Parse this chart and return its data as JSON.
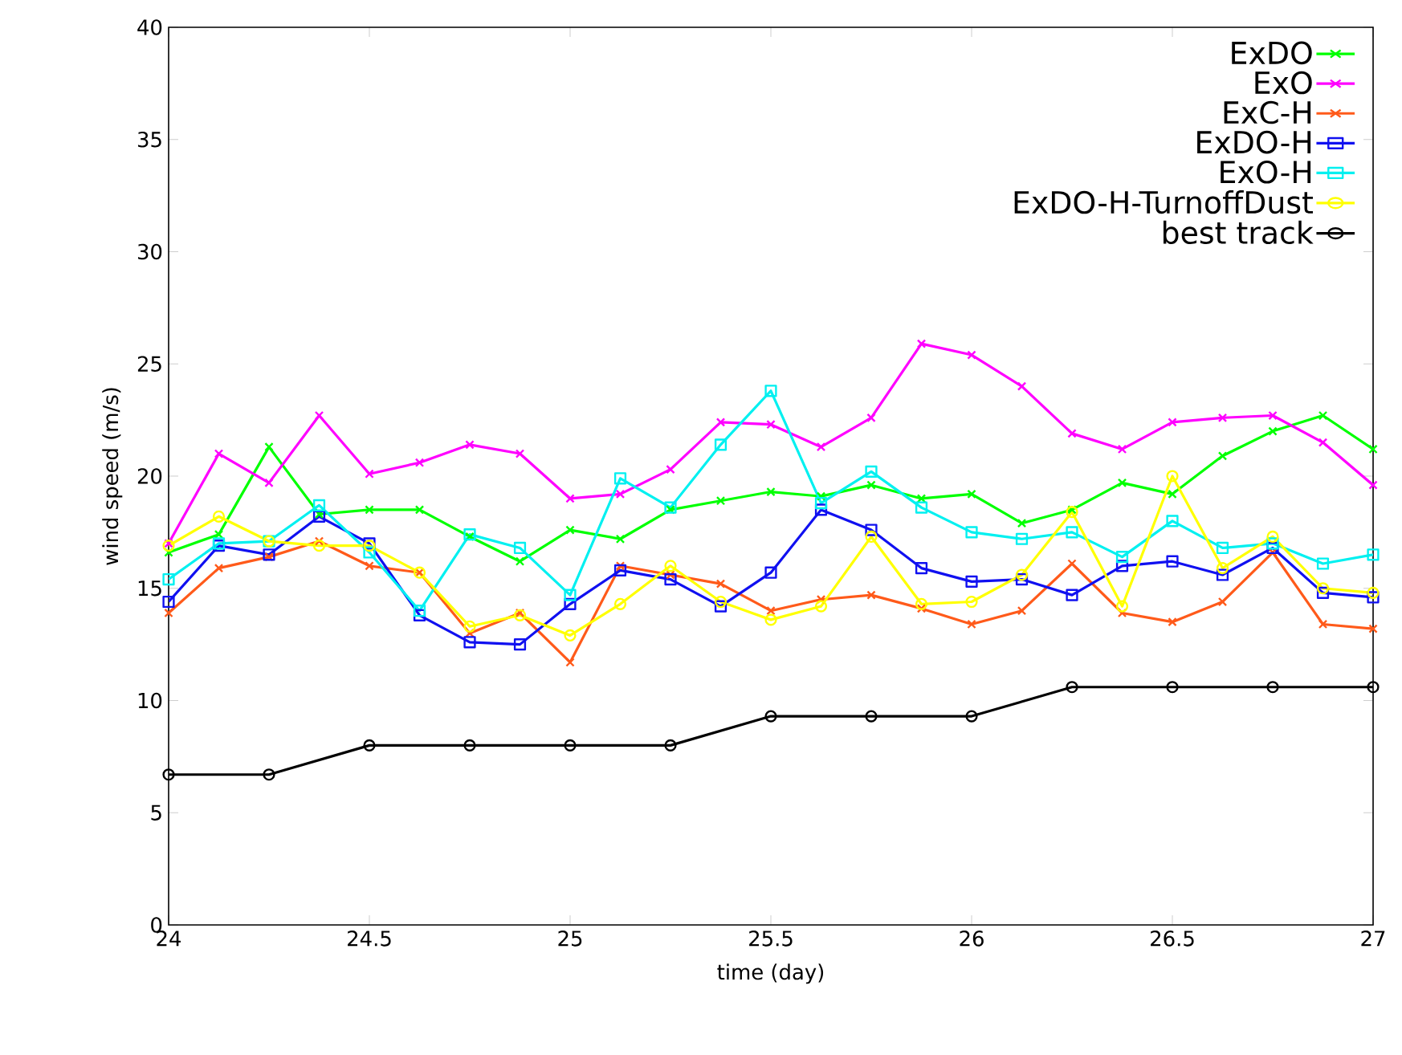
{
  "chart_data": {
    "type": "line",
    "xlabel": "time (day)",
    "ylabel": "wind speed (m/s)",
    "x": [
      24,
      24.125,
      24.25,
      24.375,
      24.5,
      24.625,
      24.75,
      24.875,
      25,
      25.125,
      25.25,
      25.375,
      25.5,
      25.625,
      25.75,
      25.875,
      26,
      26.125,
      26.25,
      26.375,
      26.5,
      26.625,
      26.75,
      26.875,
      27
    ],
    "xlim": [
      24,
      27
    ],
    "xticks": [
      24,
      24.5,
      25,
      25.5,
      26,
      26.5,
      27
    ],
    "ylim": [
      0,
      40
    ],
    "yticks": [
      0,
      5,
      10,
      15,
      20,
      25,
      30,
      35,
      40
    ],
    "grid": false,
    "legend": "top right",
    "line_style": "solid",
    "series": [
      {
        "name": "ExDO",
        "color": "#00ff00",
        "marker": "cross",
        "values": [
          16.6,
          17.4,
          21.3,
          18.3,
          18.5,
          18.5,
          17.3,
          16.2,
          17.6,
          17.2,
          18.5,
          18.9,
          19.3,
          19.1,
          19.6,
          19.0,
          19.2,
          17.9,
          18.5,
          19.7,
          19.2,
          20.9,
          22.0,
          22.7,
          21.2
        ]
      },
      {
        "name": "ExO",
        "color": "#ff00ff",
        "marker": "cross",
        "values": [
          17.0,
          21.0,
          19.7,
          22.7,
          20.1,
          20.6,
          21.4,
          21.0,
          19.0,
          19.2,
          20.3,
          22.4,
          22.3,
          21.3,
          22.6,
          25.9,
          25.4,
          24.0,
          21.9,
          21.2,
          22.4,
          22.6,
          22.7,
          21.5,
          19.6
        ]
      },
      {
        "name": "ExC-H",
        "color": "#ff5a1a",
        "marker": "cross",
        "values": [
          13.9,
          15.9,
          16.4,
          17.1,
          16.0,
          15.7,
          13.0,
          13.9,
          11.7,
          16.0,
          15.6,
          15.2,
          14.0,
          14.5,
          14.7,
          14.1,
          13.4,
          14.0,
          16.1,
          13.9,
          13.5,
          14.4,
          16.6,
          13.4,
          13.2
        ]
      },
      {
        "name": "ExDO-H",
        "color": "#1010f0",
        "marker": "square",
        "values": [
          14.4,
          16.9,
          16.5,
          18.2,
          17.0,
          13.8,
          12.6,
          12.5,
          14.3,
          15.8,
          15.4,
          14.2,
          15.7,
          18.5,
          17.6,
          15.9,
          15.3,
          15.4,
          14.7,
          16.0,
          16.2,
          15.6,
          16.8,
          14.8,
          14.6
        ]
      },
      {
        "name": "ExO-H",
        "color": "#00f0f0",
        "marker": "square",
        "values": [
          15.4,
          17.0,
          17.1,
          18.7,
          16.6,
          14.0,
          17.4,
          16.8,
          14.7,
          19.9,
          18.6,
          21.4,
          23.8,
          18.8,
          20.2,
          18.6,
          17.5,
          17.2,
          17.5,
          16.4,
          18.0,
          16.8,
          17.0,
          16.1,
          16.5
        ]
      },
      {
        "name": "ExDO-H-TurnoffDust",
        "color": "#ffff00",
        "marker": "circle",
        "values": [
          16.9,
          18.2,
          17.1,
          16.9,
          16.9,
          15.7,
          13.3,
          13.8,
          12.9,
          14.3,
          16.0,
          14.4,
          13.6,
          14.2,
          17.3,
          14.3,
          14.4,
          15.6,
          18.4,
          14.2,
          20.0,
          15.9,
          17.3,
          15.0,
          14.8
        ]
      },
      {
        "name": "best track",
        "color": "#000000",
        "marker": "circle",
        "x": [
          24,
          24.25,
          24.5,
          24.75,
          25,
          25.25,
          25.5,
          25.75,
          26,
          26.25,
          26.5,
          26.75,
          27
        ],
        "values": [
          6.7,
          6.7,
          8.0,
          8.0,
          8.0,
          8.0,
          9.3,
          9.3,
          9.3,
          10.6,
          10.6,
          10.6,
          10.6
        ]
      }
    ]
  }
}
